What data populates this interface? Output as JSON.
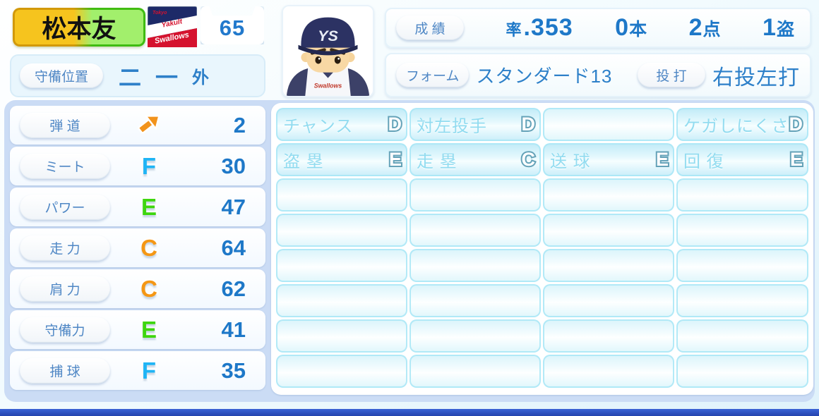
{
  "player": {
    "name": "松本友",
    "number": "65",
    "team": {
      "name": "Tokyo Yakult Swallows",
      "logo_tokyo": "Tokyo",
      "logo_yakult": "Yakult",
      "logo_swallows": "Swallows"
    },
    "avatar_cap_logo": "YS",
    "avatar_jersey_text": "Swallows"
  },
  "position": {
    "label": "守備位置",
    "main": "二",
    "sub1": "一",
    "sub2": "外"
  },
  "record": {
    "label": "成 績",
    "avg_label": "率",
    "avg": ".353",
    "hr": "0",
    "hr_suffix": "本",
    "rbi": "2",
    "rbi_suffix": "点",
    "sb": "1",
    "sb_suffix": "盗"
  },
  "form": {
    "label": "フォーム",
    "value": "スタンダード13",
    "throw_bat_label": "投 打",
    "throw_bat_value": "右投左打"
  },
  "stats": [
    {
      "label": "弾 道",
      "grade": "",
      "value": "2",
      "icon": "trajectory-arrow"
    },
    {
      "label": "ミート",
      "grade": "F",
      "value": "30"
    },
    {
      "label": "パワー",
      "grade": "E",
      "value": "47"
    },
    {
      "label": "走 力",
      "grade": "C",
      "value": "64"
    },
    {
      "label": "肩 力",
      "grade": "C",
      "value": "62"
    },
    {
      "label": "守備力",
      "grade": "E",
      "value": "41"
    },
    {
      "label": "捕 球",
      "grade": "F",
      "value": "35"
    }
  ],
  "abilities": {
    "columns": 4,
    "empty_cells": 24,
    "rows": [
      [
        {
          "name": "チャンス",
          "grade": "D"
        },
        {
          "name": "対左投手",
          "grade": "D"
        },
        null,
        {
          "name": "ケガしにくさ",
          "grade": "D"
        }
      ],
      [
        {
          "name": "盗 塁",
          "grade": "E"
        },
        {
          "name": "走 塁",
          "grade": "C"
        },
        {
          "name": "送 球",
          "grade": "E"
        },
        {
          "name": "回 復",
          "grade": "E"
        }
      ]
    ]
  },
  "colors": {
    "text_blue": "#1e78c8",
    "grade_f": "#1fb4f5",
    "grade_e": "#3ed60e",
    "grade_c": "#f59714",
    "ability_text": "#92dcf0",
    "ability_letter_outline": "#64a2b8",
    "nameplate_gold": "#f6c41e",
    "nameplate_green": "#a2ef6c",
    "team_navy": "#1d2a68",
    "team_red": "#d5122e",
    "arrow_orange": "#f2931c",
    "lower_section_bg": "#cbdcf5",
    "bottom_bar": "#2443ae"
  }
}
